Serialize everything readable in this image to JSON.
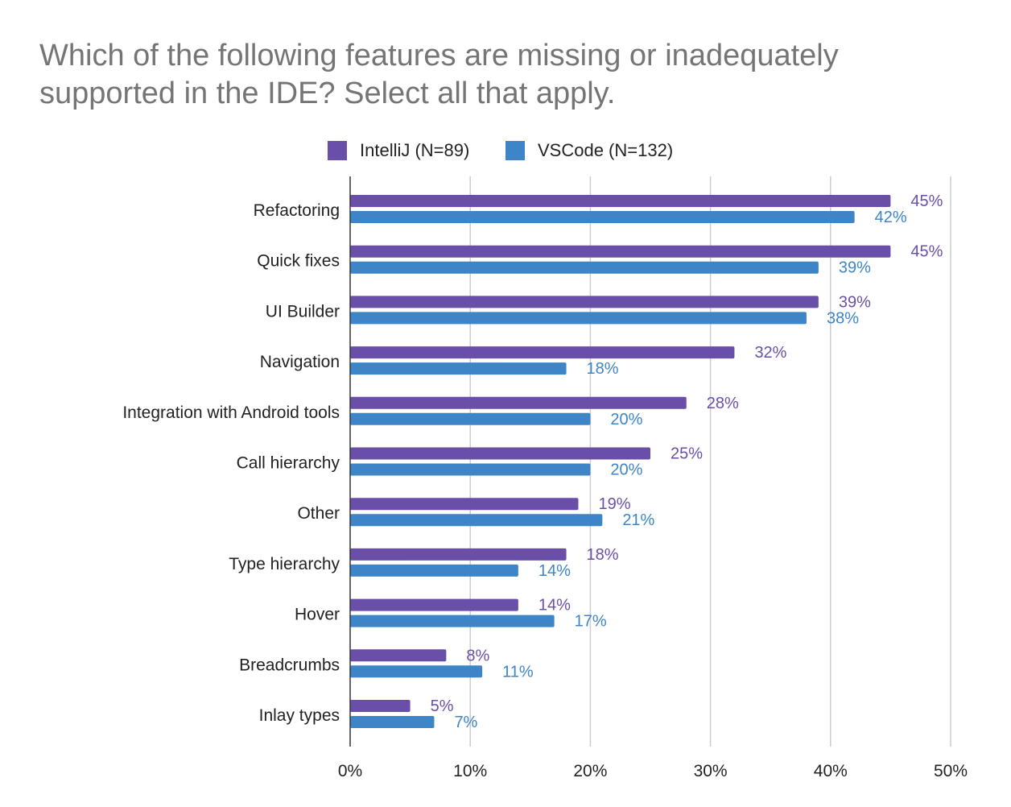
{
  "title_lines": [
    "Which of the following features are missing or inadequately",
    "supported in the IDE? Select all that apply."
  ],
  "colors": {
    "intellij": "#6a4fa8",
    "vscode": "#3d85c6",
    "grid": "#cccccc",
    "axis": "#333333"
  },
  "chart_data": {
    "type": "bar",
    "orientation": "horizontal",
    "title": "Which of the following features are missing or inadequately supported in the IDE? Select all that apply.",
    "categories": [
      "Refactoring",
      "Quick fixes",
      "UI Builder",
      "Navigation",
      "Integration with Android tools",
      "Call hierarchy",
      "Other",
      "Type hierarchy",
      "Hover",
      "Breadcrumbs",
      "Inlay types"
    ],
    "series": [
      {
        "name": "IntelliJ (N=89)",
        "values": [
          45,
          45,
          39,
          32,
          28,
          25,
          19,
          18,
          14,
          8,
          5
        ],
        "labels": [
          "45%",
          "45%",
          "39%",
          "32%",
          "28%",
          "25%",
          "19%",
          "18%",
          "14%",
          "8%",
          "5%"
        ]
      },
      {
        "name": "VSCode (N=132)",
        "values": [
          42,
          39,
          38,
          18,
          20,
          20,
          21,
          14,
          17,
          11,
          7
        ],
        "labels": [
          "42%",
          "39%",
          "38%",
          "18%",
          "20%",
          "20%",
          "21%",
          "14%",
          "17%",
          "11%",
          "7%"
        ]
      }
    ],
    "xlim": [
      0,
      50
    ],
    "xticks": [
      0,
      10,
      20,
      30,
      40,
      50
    ],
    "xtick_labels": [
      "0%",
      "10%",
      "20%",
      "30%",
      "40%",
      "50%"
    ],
    "grid": true,
    "legend_position": "top"
  }
}
